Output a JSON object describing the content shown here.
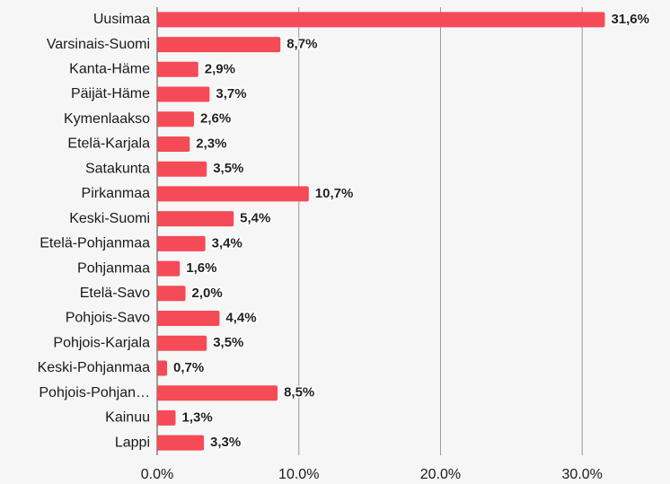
{
  "chart_data": {
    "type": "bar",
    "orientation": "horizontal",
    "categories": [
      "Uusimaa",
      "Varsinais-Suomi",
      "Kanta-Häme",
      "Päijät-Häme",
      "Kymenlaakso",
      "Etelä-Karjala",
      "Satakunta",
      "Pirkanmaa",
      "Keski-Suomi",
      "Etelä-Pohjanmaa",
      "Pohjanmaa",
      "Etelä-Savo",
      "Pohjois-Savo",
      "Pohjois-Karjala",
      "Keski-Pohjanmaa",
      "Pohjois-Pohjan…",
      "Kainuu",
      "Lappi"
    ],
    "values": [
      31.6,
      8.7,
      2.9,
      3.7,
      2.6,
      2.3,
      3.5,
      10.7,
      5.4,
      3.4,
      1.6,
      2.0,
      4.4,
      3.5,
      0.7,
      8.5,
      1.3,
      3.3
    ],
    "value_labels": [
      "31,6%",
      "8,7%",
      "2,9%",
      "3,7%",
      "2,6%",
      "2,3%",
      "3,5%",
      "10,7%",
      "5,4%",
      "3,4%",
      "1,6%",
      "2,0%",
      "4,4%",
      "3,5%",
      "0,7%",
      "8,5%",
      "1,3%",
      "3,3%"
    ],
    "color": "#f44b56",
    "xlim": [
      0,
      36.2
    ],
    "xticks": [
      {
        "value": 0,
        "label": "0.0%"
      },
      {
        "value": 10,
        "label": "10.0%"
      },
      {
        "value": 20,
        "label": "20.0%"
      },
      {
        "value": 30,
        "label": "30.0%"
      }
    ],
    "grid": true
  }
}
